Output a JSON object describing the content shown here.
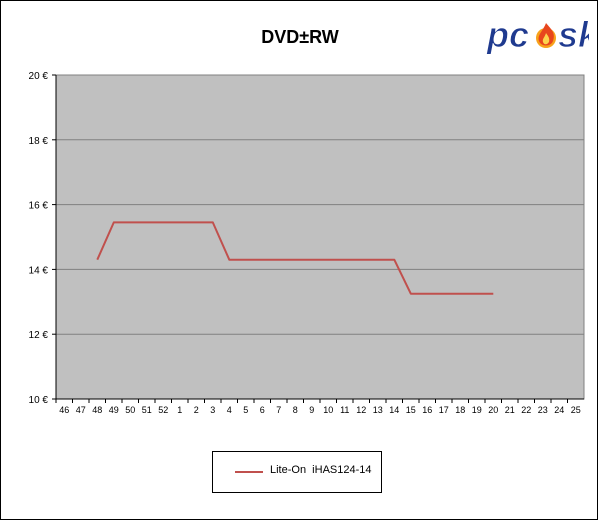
{
  "chart_data": {
    "type": "line",
    "title": "DVD±RW",
    "categories": [
      "46",
      "47",
      "48",
      "49",
      "50",
      "51",
      "52",
      "1",
      "2",
      "3",
      "4",
      "5",
      "6",
      "7",
      "8",
      "9",
      "10",
      "11",
      "12",
      "13",
      "14",
      "15",
      "16",
      "17",
      "18",
      "19",
      "20",
      "21",
      "22",
      "23",
      "24",
      "25"
    ],
    "y_tick_labels": [
      "10 €",
      "12 €",
      "14 €",
      "16 €",
      "18 €",
      "20 €"
    ],
    "ylim": [
      10,
      20
    ],
    "y_unit": "€",
    "grid": true,
    "legend_position": "bottom",
    "series": [
      {
        "name": "Lite-On  iHAS124-14",
        "color": "#c0504d",
        "values": [
          null,
          null,
          14.3,
          15.45,
          15.45,
          15.45,
          15.45,
          15.45,
          15.45,
          15.45,
          14.3,
          14.3,
          14.3,
          14.3,
          14.3,
          14.3,
          14.3,
          14.3,
          14.3,
          14.3,
          14.3,
          13.25,
          13.25,
          13.25,
          13.25,
          13.25,
          13.25,
          null,
          null,
          null,
          null,
          null
        ]
      }
    ]
  },
  "colors": {
    "plot_background": "#c0c0c0",
    "gridline": "#808080"
  },
  "logo": {
    "text": "pcusk"
  }
}
